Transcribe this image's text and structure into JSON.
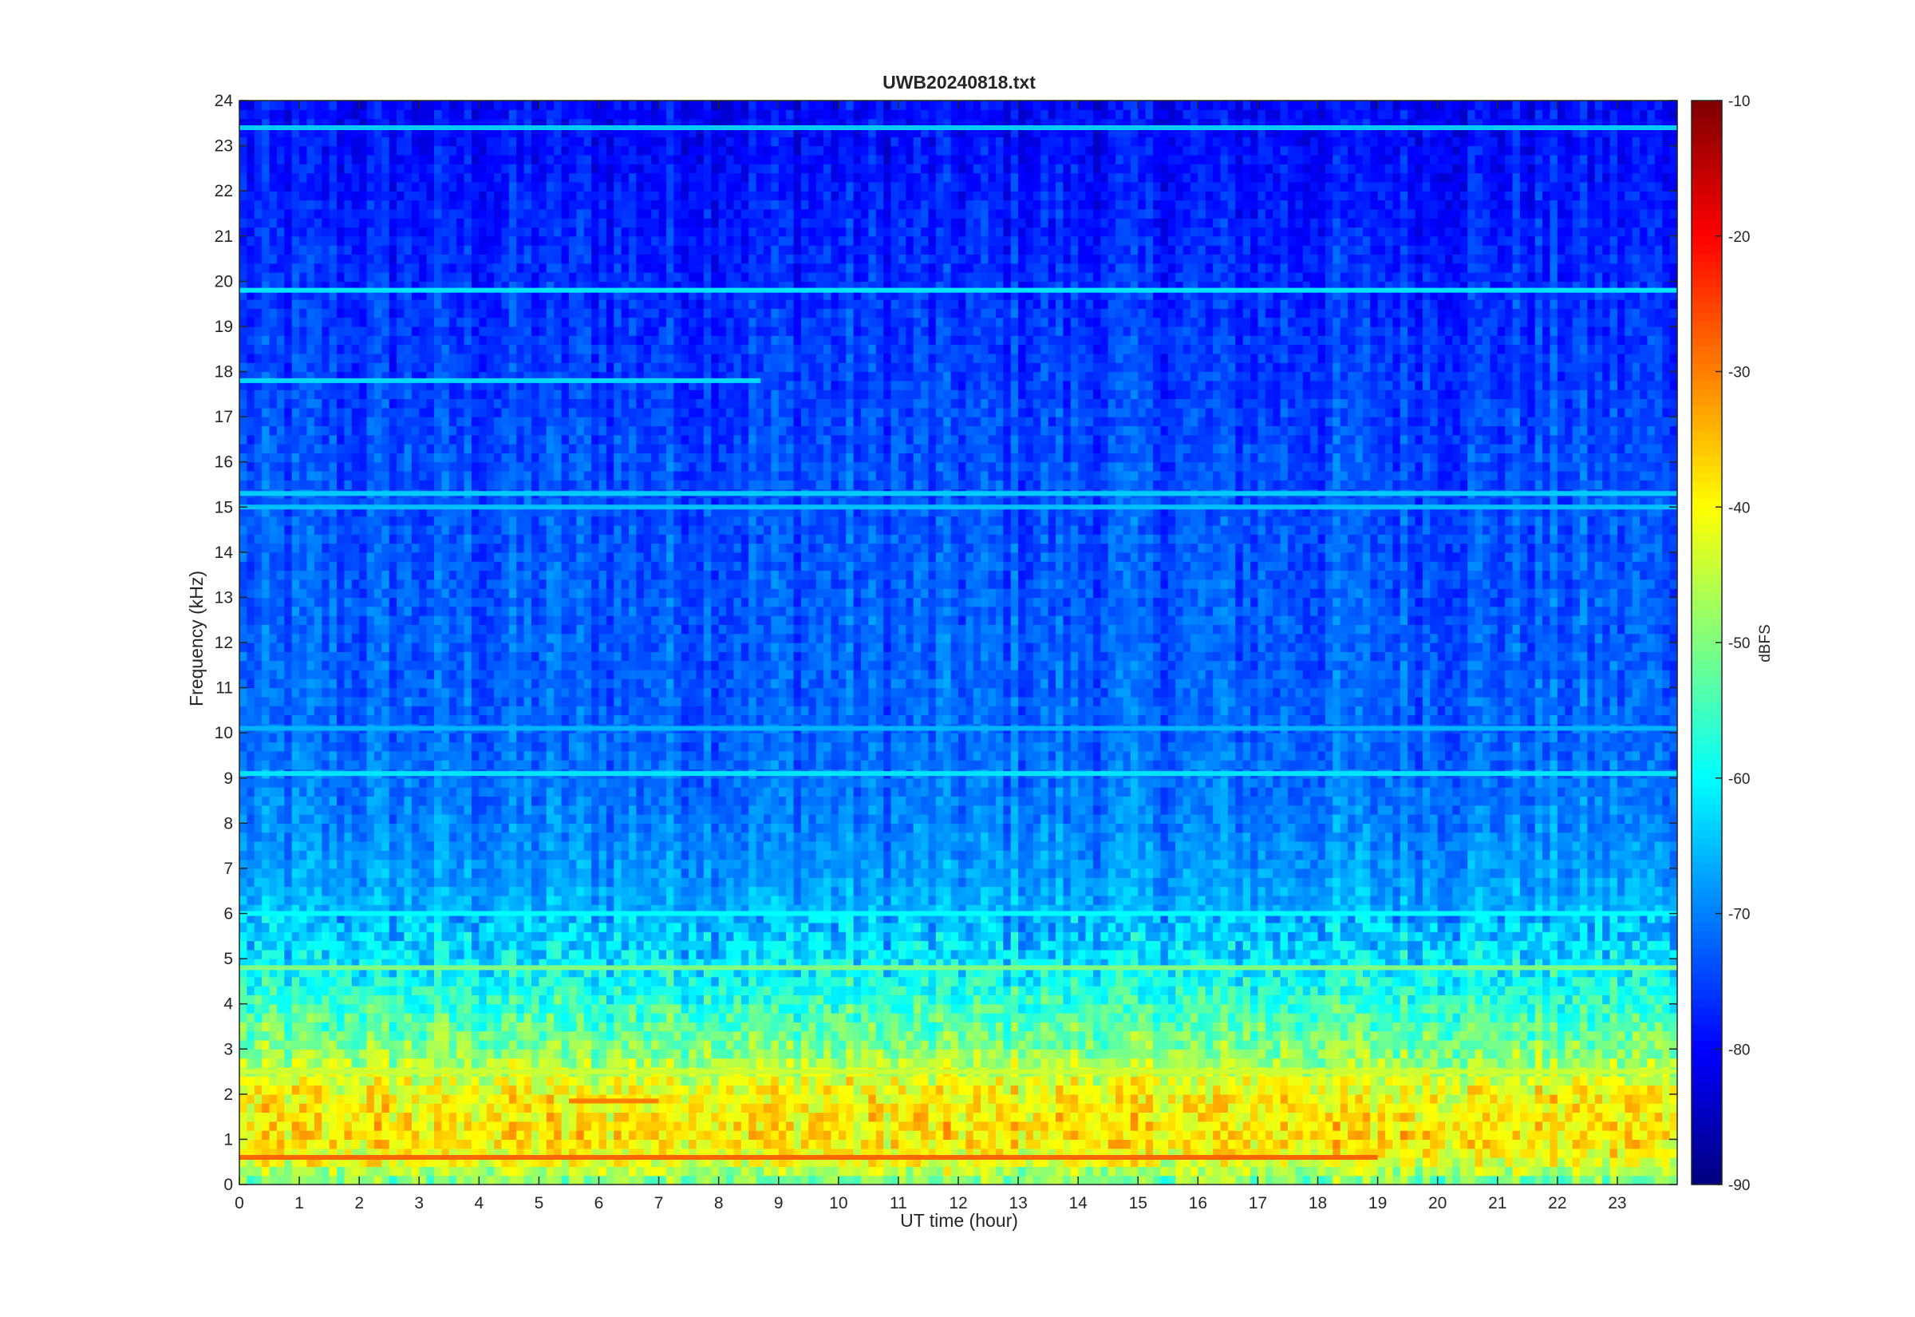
{
  "chart_data": {
    "type": "heatmap",
    "title": "UWB20240818.txt",
    "xlabel": "UT time (hour)",
    "ylabel": "Frequency (kHz)",
    "colorbar_label": "dBFS",
    "colormap": "jet",
    "xlim": [
      0,
      24
    ],
    "ylim": [
      0,
      24
    ],
    "clim": [
      -90,
      -10
    ],
    "xticks": [
      0,
      1,
      2,
      3,
      4,
      5,
      6,
      7,
      8,
      9,
      10,
      11,
      12,
      13,
      14,
      15,
      16,
      17,
      18,
      19,
      20,
      21,
      22,
      23
    ],
    "yticks": [
      0,
      1,
      2,
      3,
      4,
      5,
      6,
      7,
      8,
      9,
      10,
      11,
      12,
      13,
      14,
      15,
      16,
      17,
      18,
      19,
      20,
      21,
      22,
      23,
      24
    ],
    "cticks": [
      -90,
      -80,
      -70,
      -60,
      -50,
      -40,
      -30,
      -20,
      -10
    ],
    "level_profile": [
      {
        "freq_khz": 0.0,
        "dbfs": -52
      },
      {
        "freq_khz": 0.5,
        "dbfs": -42
      },
      {
        "freq_khz": 1.0,
        "dbfs": -38
      },
      {
        "freq_khz": 2.0,
        "dbfs": -40
      },
      {
        "freq_khz": 3.0,
        "dbfs": -50
      },
      {
        "freq_khz": 4.0,
        "dbfs": -56
      },
      {
        "freq_khz": 5.0,
        "dbfs": -62
      },
      {
        "freq_khz": 6.0,
        "dbfs": -66
      },
      {
        "freq_khz": 8.0,
        "dbfs": -70
      },
      {
        "freq_khz": 10.0,
        "dbfs": -72
      },
      {
        "freq_khz": 16.0,
        "dbfs": -74
      },
      {
        "freq_khz": 20.5,
        "dbfs": -77
      },
      {
        "freq_khz": 24.0,
        "dbfs": -80
      }
    ],
    "persistent_lines": [
      {
        "freq_khz": 19.8,
        "dbfs": -62,
        "t_start": 0,
        "t_end": 24
      },
      {
        "freq_khz": 17.8,
        "dbfs": -63,
        "t_start": 0,
        "t_end": 8.7
      },
      {
        "freq_khz": 23.4,
        "dbfs": -64,
        "t_start": 0,
        "t_end": 24
      },
      {
        "freq_khz": 15.3,
        "dbfs": -64,
        "t_start": 0,
        "t_end": 24
      },
      {
        "freq_khz": 15.0,
        "dbfs": -65,
        "t_start": 0,
        "t_end": 24
      },
      {
        "freq_khz": 10.1,
        "dbfs": -66,
        "t_start": 0,
        "t_end": 24
      },
      {
        "freq_khz": 9.1,
        "dbfs": -62,
        "t_start": 0,
        "t_end": 24
      },
      {
        "freq_khz": 6.0,
        "dbfs": -60,
        "t_start": 0,
        "t_end": 24
      },
      {
        "freq_khz": 4.8,
        "dbfs": -50,
        "t_start": 0,
        "t_end": 24
      },
      {
        "freq_khz": 2.5,
        "dbfs": -44,
        "t_start": 0,
        "t_end": 24
      },
      {
        "freq_khz": 1.85,
        "dbfs": -30,
        "t_start": 5.5,
        "t_end": 7
      },
      {
        "freq_khz": 0.6,
        "dbfs": -28,
        "t_start": 0,
        "t_end": 19
      }
    ]
  }
}
